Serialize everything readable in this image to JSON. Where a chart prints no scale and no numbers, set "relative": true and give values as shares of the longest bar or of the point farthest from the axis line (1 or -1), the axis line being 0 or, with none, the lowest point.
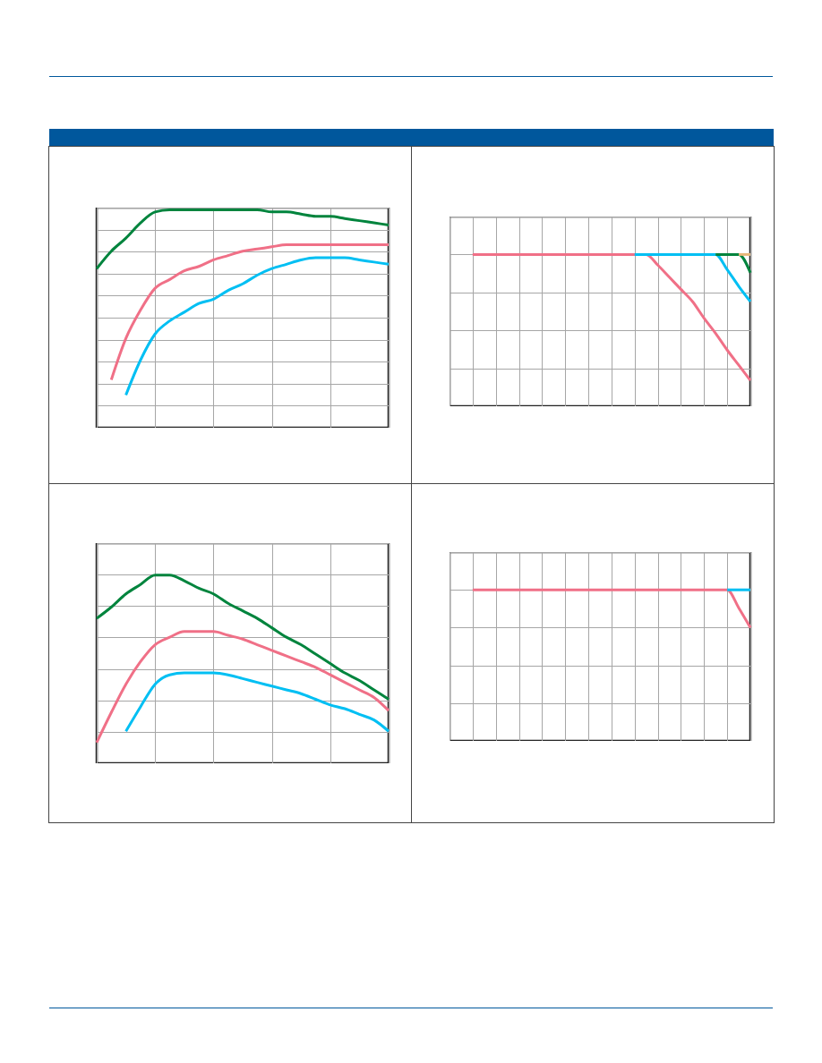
{
  "chart_data": [
    {
      "type": "line",
      "relative": true,
      "grid": true,
      "categories": [
        null,
        null,
        null,
        null,
        null,
        null,
        null,
        null,
        null,
        null,
        null,
        null,
        null,
        null,
        null,
        null,
        null,
        null,
        null,
        null,
        null
      ],
      "series": [
        {
          "color": "#f07087",
          "values": [
            null,
            0.22,
            0.41,
            0.54,
            0.64,
            0.68,
            0.72,
            0.74,
            0.77,
            0.79,
            0.81,
            0.82,
            0.83,
            0.84,
            0.84,
            0.84,
            0.84,
            0.84,
            0.84,
            0.84,
            0.84
          ]
        },
        {
          "color": "#00bff3",
          "values": [
            null,
            null,
            0.15,
            0.31,
            0.43,
            0.49,
            0.53,
            0.57,
            0.59,
            0.63,
            0.66,
            0.7,
            0.73,
            0.75,
            0.77,
            0.78,
            0.78,
            0.78,
            0.77,
            0.76,
            0.75
          ]
        },
        {
          "color": "#00843d",
          "values": [
            0.73,
            0.81,
            0.87,
            0.94,
            0.99,
            1.0,
            1.0,
            1.0,
            1.0,
            1.0,
            1.0,
            1.0,
            0.99,
            0.99,
            0.98,
            0.97,
            0.97,
            0.96,
            0.95,
            0.94,
            0.93
          ]
        }
      ]
    },
    {
      "type": "line",
      "relative": true,
      "grid": true,
      "categories": [
        null,
        null,
        null,
        null,
        null,
        null,
        null,
        null,
        null,
        null,
        null,
        null,
        null,
        null,
        null,
        null,
        null,
        null,
        null,
        null,
        null,
        null,
        null,
        null,
        null,
        null,
        null
      ],
      "series": [
        {
          "color": "#f07087",
          "values": [
            null,
            null,
            1,
            1,
            1,
            1,
            1,
            1,
            1,
            1,
            1,
            1,
            1,
            1,
            1,
            1,
            1,
            1,
            0.93,
            0.85,
            0.77,
            0.69,
            0.58,
            0.48,
            0.37,
            0.27,
            0.17
          ]
        },
        {
          "color": "#00bff3",
          "values": [
            null,
            null,
            null,
            null,
            null,
            null,
            null,
            null,
            null,
            null,
            null,
            null,
            null,
            null,
            null,
            null,
            1,
            1,
            1,
            1,
            1,
            1,
            1,
            1,
            0.9,
            0.79,
            0.69
          ]
        },
        {
          "color": "#00843d",
          "values": [
            null,
            null,
            null,
            null,
            null,
            null,
            null,
            null,
            null,
            null,
            null,
            null,
            null,
            null,
            null,
            null,
            null,
            null,
            null,
            null,
            null,
            null,
            null,
            1,
            1,
            1,
            0.88
          ]
        },
        {
          "color": "#e8b87a",
          "values": [
            null,
            null,
            null,
            null,
            null,
            null,
            null,
            null,
            null,
            null,
            null,
            null,
            null,
            null,
            null,
            null,
            null,
            null,
            null,
            null,
            null,
            null,
            null,
            null,
            null,
            1,
            1
          ]
        }
      ]
    },
    {
      "type": "line",
      "relative": true,
      "grid": true,
      "categories": [
        null,
        null,
        null,
        null,
        null,
        null,
        null,
        null,
        null,
        null,
        null,
        null,
        null,
        null,
        null,
        null,
        null,
        null,
        null,
        null,
        null
      ],
      "series": [
        {
          "color": "#f07087",
          "values": [
            0.11,
            0.27,
            0.42,
            0.54,
            0.63,
            0.67,
            0.7,
            0.7,
            0.7,
            0.68,
            0.66,
            0.63,
            0.6,
            0.57,
            0.54,
            0.51,
            0.47,
            0.43,
            0.39,
            0.35,
            0.28
          ]
        },
        {
          "color": "#00bff3",
          "values": [
            null,
            null,
            0.17,
            0.3,
            0.42,
            0.47,
            0.48,
            0.48,
            0.48,
            0.47,
            0.45,
            0.43,
            0.41,
            0.39,
            0.37,
            0.34,
            0.31,
            0.29,
            0.26,
            0.23,
            0.17
          ]
        },
        {
          "color": "#00843d",
          "values": [
            0.77,
            0.83,
            0.9,
            0.95,
            1.0,
            1.0,
            0.97,
            0.93,
            0.9,
            0.85,
            0.81,
            0.77,
            0.72,
            0.67,
            0.63,
            0.58,
            0.53,
            0.48,
            0.44,
            0.39,
            0.34
          ]
        }
      ]
    },
    {
      "type": "line",
      "relative": true,
      "grid": true,
      "categories": [
        null,
        null,
        null,
        null,
        null,
        null,
        null,
        null,
        null,
        null,
        null,
        null,
        null,
        null,
        null,
        null,
        null,
        null,
        null,
        null,
        null,
        null,
        null,
        null,
        null,
        null,
        null
      ],
      "series": [
        {
          "color": "#f07087",
          "values": [
            null,
            null,
            1,
            1,
            1,
            1,
            1,
            1,
            1,
            1,
            1,
            1,
            1,
            1,
            1,
            1,
            1,
            1,
            1,
            1,
            1,
            1,
            1,
            1,
            1,
            0.88,
            0.75
          ]
        },
        {
          "color": "#00bff3",
          "values": [
            null,
            null,
            null,
            null,
            null,
            null,
            null,
            null,
            null,
            null,
            null,
            null,
            null,
            null,
            null,
            null,
            null,
            null,
            null,
            null,
            null,
            null,
            null,
            null,
            1,
            1,
            1
          ]
        }
      ]
    }
  ]
}
